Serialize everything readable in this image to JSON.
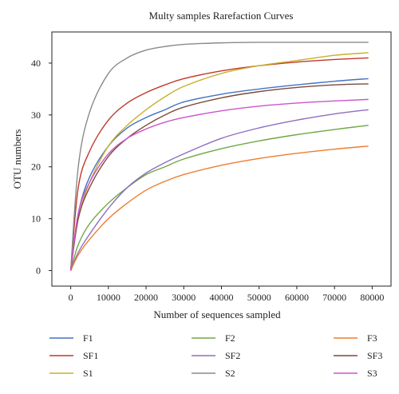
{
  "chart_data": {
    "type": "line",
    "title": "Multy samples Rarefaction Curves",
    "xlabel": "Number of sequences sampled",
    "ylabel": "OTU numbers",
    "xlim": [
      -5000,
      85000
    ],
    "ylim": [
      -3,
      46
    ],
    "x_ticks": [
      0,
      10000,
      20000,
      30000,
      40000,
      50000,
      60000,
      70000,
      80000
    ],
    "x_tick_labels": [
      "0",
      "10000",
      "20000",
      "30000",
      "40000",
      "50000",
      "60000",
      "70000",
      "80000"
    ],
    "y_ticks": [
      0,
      10,
      20,
      30,
      40
    ],
    "y_tick_labels": [
      "0",
      "10",
      "20",
      "30",
      "40"
    ],
    "grid": false,
    "legend_position": "bottom",
    "x": [
      0,
      2000,
      5000,
      10000,
      15000,
      20000,
      25000,
      30000,
      40000,
      50000,
      60000,
      70000,
      79000
    ],
    "series": [
      {
        "name": "F1",
        "color": "#4472c4",
        "values": [
          0,
          11,
          18,
          24,
          27.5,
          29.5,
          31,
          32.5,
          34,
          35,
          35.8,
          36.5,
          37
        ]
      },
      {
        "name": "SF1",
        "color": "#c0392b",
        "values": [
          0,
          16,
          23,
          29,
          32.3,
          34.3,
          35.8,
          37,
          38.5,
          39.5,
          40.2,
          40.7,
          41
        ]
      },
      {
        "name": "S1",
        "color": "#c9b02b",
        "values": [
          0,
          10,
          17,
          24,
          28,
          31,
          33.5,
          35.5,
          38,
          39.5,
          40.5,
          41.5,
          42
        ]
      },
      {
        "name": "F2",
        "color": "#70a845",
        "values": [
          0,
          5,
          9,
          13,
          16,
          18.5,
          20,
          21.5,
          23.5,
          25,
          26.2,
          27.2,
          28
        ]
      },
      {
        "name": "SF2",
        "color": "#8e6fbf",
        "values": [
          0,
          3.5,
          7,
          12,
          16,
          18.8,
          20.8,
          22.5,
          25.5,
          27.5,
          29,
          30.2,
          31
        ]
      },
      {
        "name": "S2",
        "color": "#8a8a8a",
        "values": [
          0,
          20,
          30.5,
          38,
          41,
          42.5,
          43.2,
          43.6,
          43.9,
          44,
          44,
          44,
          44
        ]
      },
      {
        "name": "F3",
        "color": "#ed7d31",
        "values": [
          0,
          3,
          6,
          10,
          13,
          15.5,
          17.2,
          18.5,
          20.3,
          21.6,
          22.6,
          23.4,
          24
        ]
      },
      {
        "name": "SF3",
        "color": "#7b4a3a",
        "values": [
          0,
          10,
          16,
          22,
          25.5,
          28,
          30,
          31.5,
          33.3,
          34.5,
          35.3,
          35.8,
          36
        ]
      },
      {
        "name": "S3",
        "color": "#cc55cc",
        "values": [
          0,
          11,
          17,
          22.5,
          25.5,
          27.3,
          28.6,
          29.5,
          30.8,
          31.7,
          32.3,
          32.7,
          33
        ]
      }
    ]
  }
}
